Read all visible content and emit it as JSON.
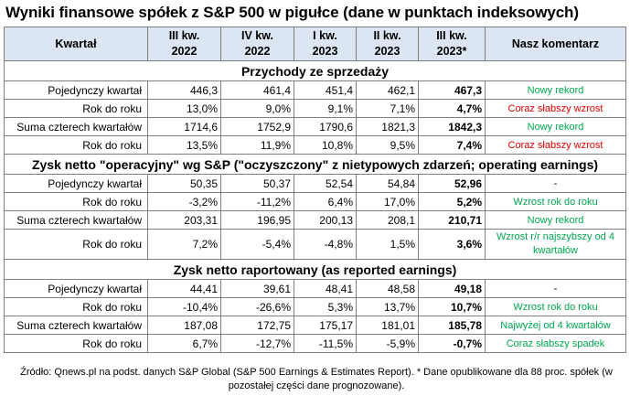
{
  "title": "Wyniki finansowe spółek z S&P 500 w pigułce (dane w punktach indeksowych)",
  "header": {
    "kwartal": "Kwartał",
    "q1": [
      "III kw.",
      "2022"
    ],
    "q2": [
      "IV kw.",
      "2022"
    ],
    "q3": [
      "I kw.",
      "2023"
    ],
    "q4": [
      "II kw.",
      "2023"
    ],
    "q5": [
      "III kw.",
      "2023*"
    ],
    "comment": "Nasz komentarz"
  },
  "sections": [
    {
      "title": "Przychody ze sprzedaży",
      "rows": [
        {
          "label": "Pojedynczy kwartał",
          "values": [
            "446,3",
            "461,4",
            "451,4",
            "462,1",
            "467,3"
          ],
          "comment": "Nowy rekord",
          "comment_color": "green"
        },
        {
          "label": "Rok do roku",
          "values": [
            "13,0%",
            "9,0%",
            "9,1%",
            "7,1%",
            "4,7%"
          ],
          "comment": "Coraz słabszy wzrost",
          "comment_color": "red"
        },
        {
          "label": "Suma czterech kwartałów",
          "values": [
            "1714,6",
            "1752,9",
            "1790,6",
            "1821,3",
            "1842,3"
          ],
          "comment": "Nowy rekord",
          "comment_color": "green"
        },
        {
          "label": "Rok do roku",
          "values": [
            "13,5%",
            "11,9%",
            "10,8%",
            "9,5%",
            "7,4%"
          ],
          "comment": "Coraz słabszy wzrost",
          "comment_color": "red"
        }
      ]
    },
    {
      "title": "Zysk netto \"operacyjny\" wg S&P (\"oczyszczony\" z nietypowych zdarzeń; operating earnings)",
      "rows": [
        {
          "label": "Pojedynczy kwartał",
          "values": [
            "50,35",
            "50,37",
            "52,54",
            "54,84",
            "52,96"
          ],
          "comment": "-",
          "comment_color": "black"
        },
        {
          "label": "Rok do roku",
          "values": [
            "-3,2%",
            "-11,2%",
            "6,4%",
            "17,0%",
            "5,2%"
          ],
          "comment": "Wzrost rok do roku",
          "comment_color": "green"
        },
        {
          "label": "Suma czterech kwartałów",
          "values": [
            "203,31",
            "196,95",
            "200,13",
            "208,1",
            "210,71"
          ],
          "comment": "Nowy rekord",
          "comment_color": "green"
        },
        {
          "label": "Rok do roku",
          "values": [
            "7,2%",
            "-5,4%",
            "-4,8%",
            "1,5%",
            "3,6%"
          ],
          "comment": "Wzrost r/r najszybszy od 4 kwartałów",
          "comment_color": "green"
        }
      ]
    },
    {
      "title": "Zysk netto raportowany (as reported earnings)",
      "rows": [
        {
          "label": "Pojedynczy kwartał",
          "values": [
            "44,41",
            "39,61",
            "48,41",
            "48,58",
            "49,18"
          ],
          "comment": "-",
          "comment_color": "black"
        },
        {
          "label": "Rok do roku",
          "values": [
            "-10,4%",
            "-26,6%",
            "5,3%",
            "13,7%",
            "10,7%"
          ],
          "comment": "Wzrost rok do roku",
          "comment_color": "green"
        },
        {
          "label": "Suma czterech kwartałów",
          "values": [
            "187,08",
            "172,75",
            "175,17",
            "181,01",
            "185,78"
          ],
          "comment": "Najwyżej od 4 kwartałów",
          "comment_color": "green"
        },
        {
          "label": "Rok do roku",
          "values": [
            "6,7%",
            "-12,7%",
            "-11,5%",
            "-5,9%",
            "-0,7%"
          ],
          "comment": "Coraz słabszy spadek",
          "comment_color": "green"
        }
      ]
    }
  ],
  "footnote": "Źródło: Qnews.pl na podst. danych S&P Global (S&P 500 Earnings & Estimates Report). * Dane opublikowane dla 88 proc. spółek (w pozostałej części dane prognozowane)."
}
